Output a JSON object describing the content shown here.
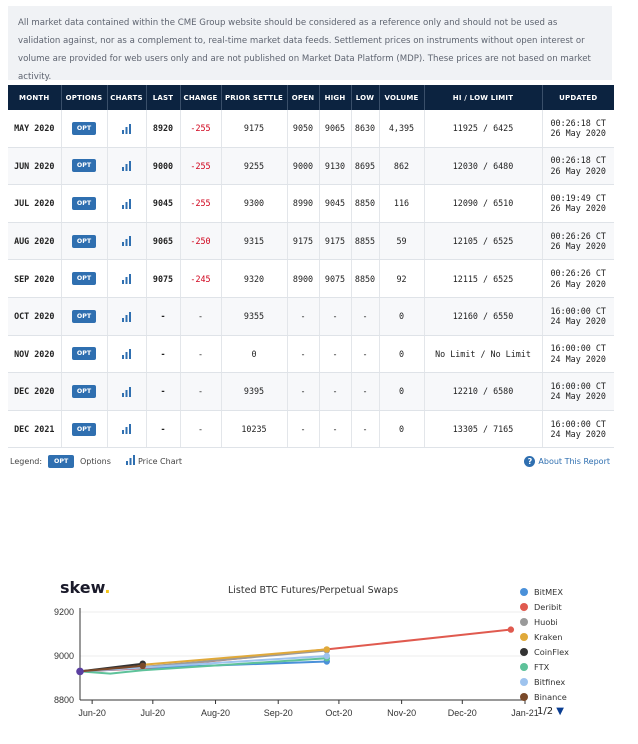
{
  "disclaimer": "All market data contained within the CME Group website should be considered as a reference only and should not be used as validation against, nor as a complement to, real-time market data feeds. Settlement prices on instruments without open interest or volume are provided for web users only and are not published on Market Data Platform (MDP). These prices are not based on market activity.",
  "table": {
    "headers": [
      "MONTH",
      "OPTIONS",
      "CHARTS",
      "LAST",
      "CHANGE",
      "PRIOR SETTLE",
      "OPEN",
      "HIGH",
      "LOW",
      "VOLUME",
      "HI / LOW LIMIT",
      "UPDATED"
    ],
    "opt_label": "OPT",
    "rows": [
      {
        "month": "MAY 2020",
        "last": "8920",
        "change": "-255",
        "prior": "9175",
        "open": "9050",
        "high": "9065",
        "low": "8630",
        "volume": "4,395",
        "limit": "11925 / 6425",
        "time": "00:26:18 CT",
        "date": "26 May 2020"
      },
      {
        "month": "JUN 2020",
        "last": "9000",
        "change": "-255",
        "prior": "9255",
        "open": "9000",
        "high": "9130",
        "low": "8695",
        "volume": "862",
        "limit": "12030 / 6480",
        "time": "00:26:18 CT",
        "date": "26 May 2020"
      },
      {
        "month": "JUL 2020",
        "last": "9045",
        "change": "-255",
        "prior": "9300",
        "open": "8990",
        "high": "9045",
        "low": "8850",
        "volume": "116",
        "limit": "12090 / 6510",
        "time": "00:19:49 CT",
        "date": "26 May 2020"
      },
      {
        "month": "AUG 2020",
        "last": "9065",
        "change": "-250",
        "prior": "9315",
        "open": "9175",
        "high": "9175",
        "low": "8855",
        "volume": "59",
        "limit": "12105 / 6525",
        "time": "00:26:26 CT",
        "date": "26 May 2020"
      },
      {
        "month": "SEP 2020",
        "last": "9075",
        "change": "-245",
        "prior": "9320",
        "open": "8900",
        "high": "9075",
        "low": "8850",
        "volume": "92",
        "limit": "12115 / 6525",
        "time": "00:26:26 CT",
        "date": "26 May 2020"
      },
      {
        "month": "OCT 2020",
        "last": "-",
        "change": "-",
        "prior": "9355",
        "open": "-",
        "high": "-",
        "low": "-",
        "volume": "0",
        "limit": "12160 / 6550",
        "time": "16:00:00 CT",
        "date": "24 May 2020"
      },
      {
        "month": "NOV 2020",
        "last": "-",
        "change": "-",
        "prior": "0",
        "open": "-",
        "high": "-",
        "low": "-",
        "volume": "0",
        "limit": "No Limit / No Limit",
        "time": "16:00:00 CT",
        "date": "24 May 2020"
      },
      {
        "month": "DEC 2020",
        "last": "-",
        "change": "-",
        "prior": "9395",
        "open": "-",
        "high": "-",
        "low": "-",
        "volume": "0",
        "limit": "12210 / 6580",
        "time": "16:00:00 CT",
        "date": "24 May 2020"
      },
      {
        "month": "DEC 2021",
        "last": "-",
        "change": "-",
        "prior": "10235",
        "open": "-",
        "high": "-",
        "low": "-",
        "volume": "0",
        "limit": "13305 / 7165",
        "time": "16:00:00 CT",
        "date": "24 May 2020"
      }
    ]
  },
  "legend": {
    "label": "Legend:",
    "opt": "OPT",
    "options": "Options",
    "price_chart": "Price Chart",
    "about": "About This Report"
  },
  "chart_data": {
    "type": "line",
    "logo": "skew",
    "title": "Listed BTC Futures/Perpetual Swaps",
    "x_ticks": [
      "Jun-20",
      "Jul-20",
      "Aug-20",
      "Sep-20",
      "Oct-20",
      "Nov-20",
      "Dec-20",
      "Jan-21"
    ],
    "y_ticks": [
      9200,
      9000,
      8800
    ],
    "ylim": [
      8800,
      9200
    ],
    "series": [
      {
        "name": "BitMEX",
        "color": "#4a90d9",
        "points": [
          [
            "2020-05-26",
            8930
          ],
          [
            "2020-07-10",
            8950
          ],
          [
            "2020-09-25",
            8975
          ]
        ]
      },
      {
        "name": "Deribit",
        "color": "#e05a4f",
        "points": [
          [
            "2020-05-26",
            8930
          ],
          [
            "2020-06-26",
            8945
          ],
          [
            "2020-09-25",
            9030
          ],
          [
            "2020-12-25",
            9120
          ]
        ]
      },
      {
        "name": "Huobi",
        "color": "#9a9a9a",
        "points": [
          [
            "2020-05-26",
            8930
          ],
          [
            "2020-06-26",
            8950
          ],
          [
            "2020-09-25",
            9025
          ]
        ]
      },
      {
        "name": "Kraken",
        "color": "#e0a93a",
        "points": [
          [
            "2020-05-26",
            8930
          ],
          [
            "2020-06-26",
            8960
          ],
          [
            "2020-09-25",
            9030
          ]
        ]
      },
      {
        "name": "CoinFlex",
        "color": "#333333",
        "points": [
          [
            "2020-05-26",
            8930
          ],
          [
            "2020-06-26",
            8965
          ]
        ]
      },
      {
        "name": "FTX",
        "color": "#5ec29a",
        "points": [
          [
            "2020-05-26",
            8930
          ],
          [
            "2020-06-10",
            8920
          ],
          [
            "2020-06-26",
            8935
          ],
          [
            "2020-09-25",
            8990
          ]
        ]
      },
      {
        "name": "Bitfinex",
        "color": "#9ec3ee",
        "points": [
          [
            "2020-05-26",
            8930
          ],
          [
            "2020-09-25",
            9000
          ]
        ]
      },
      {
        "name": "Binance",
        "color": "#7a4a2a",
        "points": [
          [
            "2020-05-26",
            8930
          ],
          [
            "2020-06-26",
            8955
          ]
        ]
      }
    ],
    "pager": "1/2"
  }
}
